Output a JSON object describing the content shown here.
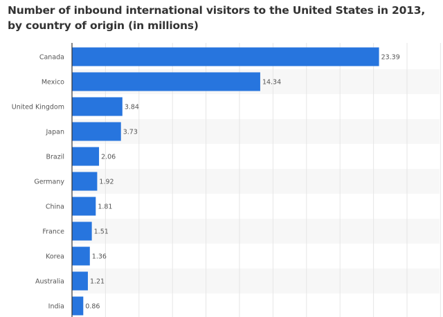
{
  "chart_data": {
    "type": "bar",
    "orientation": "horizontal",
    "title": "Number of inbound international visitors to the United States in 2013, by country of origin (in millions)",
    "categories": [
      "Canada",
      "Mexico",
      "United Kingdom",
      "Japan",
      "Brazil",
      "Germany",
      "China",
      "France",
      "Korea",
      "Australia",
      "India"
    ],
    "values": [
      23.39,
      14.34,
      3.84,
      3.73,
      2.06,
      1.92,
      1.81,
      1.51,
      1.36,
      1.21,
      0.86
    ],
    "value_labels": [
      "23.39",
      "14.34",
      "3.84",
      "3.73",
      "2.06",
      "1.92",
      "1.81",
      "1.51",
      "1.36",
      "1.21",
      "0.86"
    ],
    "xlim": [
      0,
      28
    ],
    "grid": true,
    "bar_color": "#2775de"
  }
}
